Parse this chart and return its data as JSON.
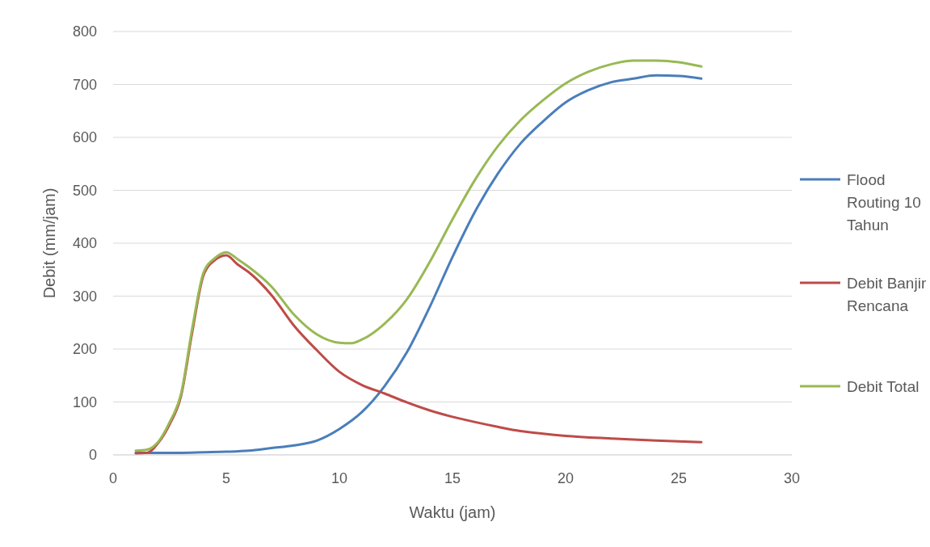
{
  "chart_data": {
    "type": "line",
    "xlabel": "Waktu (jam)",
    "ylabel": "Debit (mm/jam)",
    "xlim": [
      0,
      30
    ],
    "xticks": [
      0,
      5,
      10,
      15,
      20,
      25,
      30
    ],
    "ylim": [
      0,
      800
    ],
    "yticks": [
      0,
      100,
      200,
      300,
      400,
      500,
      600,
      700,
      800
    ],
    "grid": "y",
    "legend": "right",
    "marker": "none",
    "line_style": "solid",
    "series": [
      {
        "name": "Flood Routing 10 Tahun",
        "color": "#4a7ebb",
        "x": [
          1,
          2,
          3,
          4,
          5,
          6,
          7,
          8,
          9,
          10,
          11,
          12,
          13,
          14,
          15,
          16,
          17,
          18,
          19,
          20,
          21,
          22,
          23,
          24,
          25,
          26
        ],
        "values": [
          4,
          4,
          4,
          5,
          6,
          8,
          13,
          18,
          27,
          49,
          81,
          130,
          195,
          280,
          374,
          460,
          531,
          588,
          630,
          666,
          689,
          704,
          711,
          717,
          716,
          711
        ]
      },
      {
        "name": "Debit Banjir Rencana",
        "color": "#be4b48",
        "x": [
          1,
          1.5,
          2,
          2.5,
          3,
          3.5,
          4,
          4.5,
          5,
          5.5,
          6,
          7,
          8,
          9,
          10,
          11,
          12,
          13,
          14,
          15,
          16,
          17,
          18,
          19,
          20,
          22,
          24,
          26
        ],
        "values": [
          3,
          4,
          23,
          58,
          111,
          233,
          340,
          368,
          377,
          360,
          345,
          302,
          244,
          198,
          157,
          132,
          116,
          99,
          84,
          72,
          62,
          53,
          45,
          40,
          36,
          31,
          27,
          24
        ]
      },
      {
        "name": "Debit Total",
        "color": "#98b954",
        "x": [
          1,
          1.5,
          2,
          2.5,
          3,
          3.5,
          4,
          4.5,
          5,
          5.5,
          6,
          7,
          8,
          9,
          10,
          10.5,
          11,
          12,
          13,
          14,
          15,
          16,
          17,
          18,
          19,
          20,
          21,
          22,
          23,
          24,
          25,
          26
        ],
        "values": [
          8,
          10,
          25,
          62,
          115,
          240,
          345,
          372,
          383,
          370,
          355,
          318,
          265,
          228,
          212,
          211,
          218,
          248,
          295,
          365,
          445,
          520,
          583,
          632,
          670,
          702,
          724,
          738,
          745,
          745,
          742,
          734
        ]
      }
    ]
  }
}
